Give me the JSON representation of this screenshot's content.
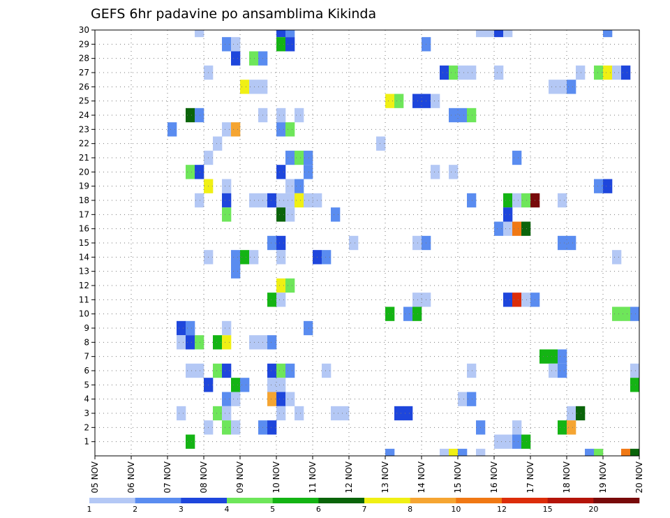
{
  "chart_data": {
    "type": "heatmap",
    "title": "GEFS 6hr padavine po ansamblima Kikinda",
    "x_ticks": [
      "05 NOV",
      "06 NOV",
      "07 NOV",
      "08 NOV",
      "09 NOV",
      "10 NOV",
      "11 NOV",
      "12 NOV",
      "13 NOV",
      "14 NOV",
      "15 NOV",
      "16 NOV",
      "17 NOV",
      "18 NOV",
      "19 NOV",
      "20 NOV"
    ],
    "x_range": [
      "05 NOV 00z",
      "20 NOV 00z"
    ],
    "time_step_hours": 6,
    "y_ticks": [
      1,
      2,
      3,
      4,
      5,
      6,
      7,
      8,
      9,
      10,
      11,
      12,
      13,
      14,
      15,
      16,
      17,
      18,
      19,
      20,
      21,
      22,
      23,
      24,
      25,
      26,
      27,
      28,
      29,
      30
    ],
    "y_range": [
      0,
      30
    ],
    "grid": true,
    "legend": {
      "position": "bottom",
      "labels": [
        "1",
        "2",
        "3",
        "4",
        "5",
        "6",
        "7",
        "8",
        "10",
        "12",
        "15",
        "20"
      ],
      "colors": [
        "#b4c8f5",
        "#5a8cf0",
        "#1e46dc",
        "#6ee65a",
        "#14b414",
        "#0a640a",
        "#f0f014",
        "#f5a532",
        "#f07814",
        "#dc2d0a",
        "#b4140a",
        "#780a0a"
      ]
    },
    "cells": [
      {
        "m": 30,
        "t": [
          [
            11,
            0
          ],
          [
            20,
            2
          ],
          [
            21,
            1
          ],
          [
            42,
            0
          ],
          [
            43,
            0
          ],
          [
            44,
            2
          ],
          [
            45,
            0
          ],
          [
            56,
            1
          ]
        ]
      },
      {
        "m": 29,
        "t": [
          [
            14,
            1
          ],
          [
            15,
            0
          ],
          [
            20,
            4
          ],
          [
            21,
            2
          ],
          [
            36,
            1
          ]
        ]
      },
      {
        "m": 28,
        "t": [
          [
            15,
            2
          ],
          [
            17,
            3
          ],
          [
            18,
            1
          ]
        ]
      },
      {
        "m": 27,
        "t": [
          [
            12,
            0
          ],
          [
            38,
            2
          ],
          [
            39,
            3
          ],
          [
            40,
            0
          ],
          [
            41,
            0
          ],
          [
            44,
            0
          ],
          [
            53,
            0
          ],
          [
            55,
            3
          ],
          [
            56,
            6
          ],
          [
            57,
            0
          ],
          [
            58,
            2
          ]
        ]
      },
      {
        "m": 26,
        "t": [
          [
            16,
            6
          ],
          [
            17,
            0
          ],
          [
            18,
            0
          ],
          [
            50,
            0
          ],
          [
            51,
            0
          ],
          [
            52,
            1
          ]
        ]
      },
      {
        "m": 25,
        "t": [
          [
            32,
            6
          ],
          [
            33,
            3
          ],
          [
            35,
            2
          ],
          [
            36,
            2
          ],
          [
            37,
            0
          ]
        ]
      },
      {
        "m": 24,
        "t": [
          [
            10,
            5
          ],
          [
            11,
            1
          ],
          [
            18,
            0
          ],
          [
            20,
            0
          ],
          [
            22,
            0
          ],
          [
            39,
            1
          ],
          [
            40,
            1
          ],
          [
            41,
            3
          ]
        ]
      },
      {
        "m": 23,
        "t": [
          [
            8,
            1
          ],
          [
            14,
            0
          ],
          [
            15,
            7
          ],
          [
            20,
            1
          ],
          [
            21,
            3
          ]
        ]
      },
      {
        "m": 22,
        "t": [
          [
            13,
            0
          ],
          [
            31,
            0
          ]
        ]
      },
      {
        "m": 21,
        "t": [
          [
            12,
            0
          ],
          [
            21,
            1
          ],
          [
            22,
            3
          ],
          [
            23,
            1
          ],
          [
            46,
            1
          ]
        ]
      },
      {
        "m": 20,
        "t": [
          [
            10,
            3
          ],
          [
            11,
            2
          ],
          [
            20,
            2
          ],
          [
            23,
            1
          ],
          [
            37,
            0
          ],
          [
            39,
            0
          ]
        ]
      },
      {
        "m": 19,
        "t": [
          [
            12,
            6
          ],
          [
            14,
            0
          ],
          [
            21,
            0
          ],
          [
            22,
            1
          ],
          [
            55,
            1
          ],
          [
            56,
            2
          ]
        ]
      },
      {
        "m": 18,
        "t": [
          [
            11,
            0
          ],
          [
            14,
            2
          ],
          [
            17,
            0
          ],
          [
            18,
            0
          ],
          [
            19,
            2
          ],
          [
            20,
            0
          ],
          [
            21,
            0
          ],
          [
            22,
            6
          ],
          [
            23,
            0
          ],
          [
            24,
            0
          ],
          [
            41,
            1
          ],
          [
            45,
            4
          ],
          [
            46,
            0
          ],
          [
            47,
            3
          ],
          [
            48,
            11
          ],
          [
            51,
            0
          ]
        ]
      },
      {
        "m": 17,
        "t": [
          [
            14,
            3
          ],
          [
            20,
            5
          ],
          [
            21,
            0
          ],
          [
            26,
            1
          ],
          [
            45,
            2
          ]
        ]
      },
      {
        "m": 16,
        "t": [
          [
            44,
            1
          ],
          [
            45,
            0
          ],
          [
            46,
            8
          ],
          [
            47,
            5
          ]
        ]
      },
      {
        "m": 15,
        "t": [
          [
            19,
            1
          ],
          [
            20,
            2
          ],
          [
            28,
            0
          ],
          [
            35,
            0
          ],
          [
            36,
            1
          ],
          [
            51,
            1
          ],
          [
            52,
            1
          ]
        ]
      },
      {
        "m": 14,
        "t": [
          [
            12,
            0
          ],
          [
            15,
            1
          ],
          [
            16,
            4
          ],
          [
            17,
            0
          ],
          [
            20,
            0
          ],
          [
            24,
            2
          ],
          [
            25,
            1
          ],
          [
            57,
            0
          ]
        ]
      },
      {
        "m": 13,
        "t": [
          [
            15,
            1
          ]
        ]
      },
      {
        "m": 12,
        "t": [
          [
            20,
            6
          ],
          [
            21,
            3
          ]
        ]
      },
      {
        "m": 11,
        "t": [
          [
            19,
            4
          ],
          [
            20,
            0
          ],
          [
            35,
            0
          ],
          [
            36,
            0
          ],
          [
            45,
            2
          ],
          [
            46,
            9
          ],
          [
            47,
            0
          ],
          [
            48,
            1
          ]
        ]
      },
      {
        "m": 10,
        "t": [
          [
            32,
            4
          ],
          [
            34,
            1
          ],
          [
            35,
            4
          ],
          [
            57,
            3
          ],
          [
            58,
            3
          ],
          [
            59,
            1
          ]
        ]
      },
      {
        "m": 9,
        "t": [
          [
            9,
            2
          ],
          [
            10,
            1
          ],
          [
            14,
            0
          ],
          [
            23,
            1
          ]
        ]
      },
      {
        "m": 8,
        "t": [
          [
            9,
            0
          ],
          [
            10,
            2
          ],
          [
            11,
            3
          ],
          [
            13,
            4
          ],
          [
            14,
            6
          ],
          [
            17,
            0
          ],
          [
            18,
            0
          ],
          [
            19,
            1
          ]
        ]
      },
      {
        "m": 7,
        "t": [
          [
            49,
            4
          ],
          [
            50,
            4
          ],
          [
            51,
            1
          ]
        ]
      },
      {
        "m": 6,
        "t": [
          [
            10,
            0
          ],
          [
            11,
            0
          ],
          [
            13,
            3
          ],
          [
            14,
            2
          ],
          [
            19,
            2
          ],
          [
            20,
            3
          ],
          [
            21,
            1
          ],
          [
            25,
            0
          ],
          [
            41,
            0
          ],
          [
            50,
            0
          ],
          [
            51,
            1
          ],
          [
            59,
            0
          ]
        ]
      },
      {
        "m": 5,
        "t": [
          [
            12,
            2
          ],
          [
            15,
            4
          ],
          [
            16,
            1
          ],
          [
            19,
            0
          ],
          [
            20,
            0
          ],
          [
            59,
            4
          ]
        ]
      },
      {
        "m": 4,
        "t": [
          [
            14,
            1
          ],
          [
            15,
            0
          ],
          [
            19,
            7
          ],
          [
            20,
            2
          ],
          [
            21,
            0
          ],
          [
            40,
            0
          ],
          [
            41,
            1
          ]
        ]
      },
      {
        "m": 3,
        "t": [
          [
            9,
            0
          ],
          [
            13,
            3
          ],
          [
            14,
            0
          ],
          [
            20,
            0
          ],
          [
            22,
            0
          ],
          [
            26,
            0
          ],
          [
            27,
            0
          ],
          [
            33,
            2
          ],
          [
            34,
            2
          ],
          [
            52,
            0
          ],
          [
            53,
            5
          ]
        ]
      },
      {
        "m": 2,
        "t": [
          [
            12,
            0
          ],
          [
            14,
            3
          ],
          [
            15,
            0
          ],
          [
            18,
            1
          ],
          [
            19,
            2
          ],
          [
            42,
            1
          ],
          [
            46,
            0
          ],
          [
            51,
            4
          ],
          [
            52,
            7
          ]
        ]
      },
      {
        "m": 1,
        "t": [
          [
            10,
            4
          ],
          [
            44,
            0
          ],
          [
            45,
            0
          ],
          [
            46,
            1
          ],
          [
            47,
            4
          ]
        ]
      },
      {
        "m": 0,
        "t": [
          [
            32,
            1
          ],
          [
            38,
            0
          ],
          [
            39,
            6
          ],
          [
            40,
            1
          ],
          [
            42,
            0
          ],
          [
            54,
            1
          ],
          [
            55,
            3
          ],
          [
            58,
            8
          ],
          [
            59,
            5
          ]
        ]
      }
    ]
  }
}
